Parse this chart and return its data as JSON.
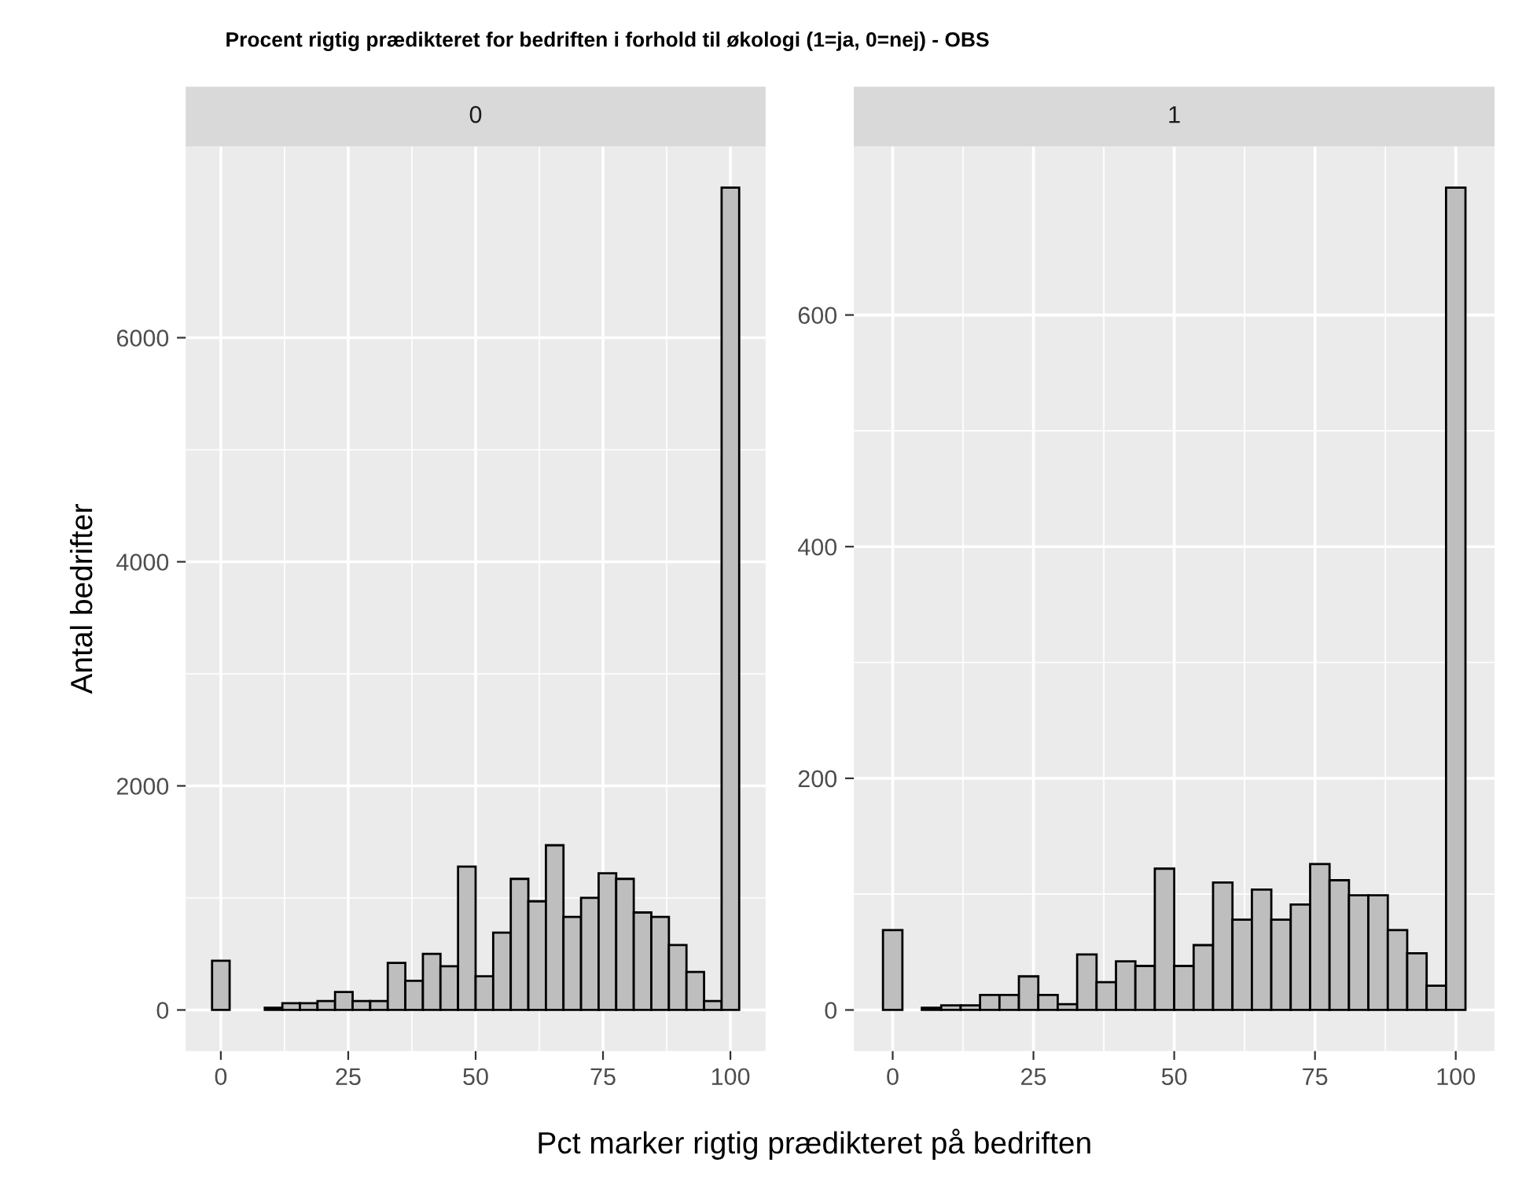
{
  "chart_data": [
    {
      "type": "histogram",
      "title": "0",
      "subtitle": "Procent rigtig prædikteret for bedriften i forhold til økologi (1=ja, 0=nej) - OBS",
      "xlabel": "Pct marker rigtig prædikteret på bedriften",
      "ylabel": "Antal bedrifter",
      "bins": [
        -1.724,
        1.724,
        5.172,
        8.621,
        12.069,
        15.517,
        18.966,
        22.414,
        25.862,
        29.31,
        32.759,
        36.207,
        39.655,
        43.103,
        46.552,
        50.0,
        53.448,
        56.897,
        60.345,
        63.793,
        67.241,
        70.69,
        74.138,
        77.586,
        81.034,
        84.483,
        87.931,
        91.379,
        94.828,
        98.276,
        101.724
      ],
      "values": [
        440,
        0,
        0,
        20,
        60,
        60,
        80,
        160,
        80,
        80,
        420,
        260,
        500,
        390,
        1280,
        300,
        690,
        1170,
        970,
        1470,
        830,
        1000,
        1220,
        1170,
        870,
        830,
        580,
        340,
        80,
        7340
      ],
      "color": "#bebebe",
      "xlim": [
        -6.9,
        106.9
      ],
      "xticks": [
        0,
        25,
        50,
        75,
        100
      ],
      "ylim": [
        -367,
        7707
      ],
      "yticks": [
        0,
        2000,
        4000,
        6000
      ],
      "grid": true
    },
    {
      "type": "histogram",
      "title": "1",
      "bins": [
        -1.724,
        1.724,
        5.172,
        8.621,
        12.069,
        15.517,
        18.966,
        22.414,
        25.862,
        29.31,
        32.759,
        36.207,
        39.655,
        43.103,
        46.552,
        50.0,
        53.448,
        56.897,
        60.345,
        63.793,
        67.241,
        70.69,
        74.138,
        77.586,
        81.034,
        84.483,
        87.931,
        91.379,
        94.828,
        98.276,
        101.724
      ],
      "values": [
        69,
        0,
        2,
        4,
        4,
        13,
        13,
        29,
        13,
        5,
        48,
        24,
        42,
        38,
        122,
        38,
        56,
        110,
        78,
        104,
        78,
        91,
        126,
        112,
        99,
        99,
        69,
        49,
        21,
        710
      ],
      "color": "#bebebe",
      "xlim": [
        -6.9,
        106.9
      ],
      "xticks": [
        0,
        25,
        50,
        75,
        100
      ],
      "ylim": [
        -35.5,
        745.5
      ],
      "yticks": [
        0,
        200,
        400,
        600
      ],
      "grid": true
    }
  ]
}
